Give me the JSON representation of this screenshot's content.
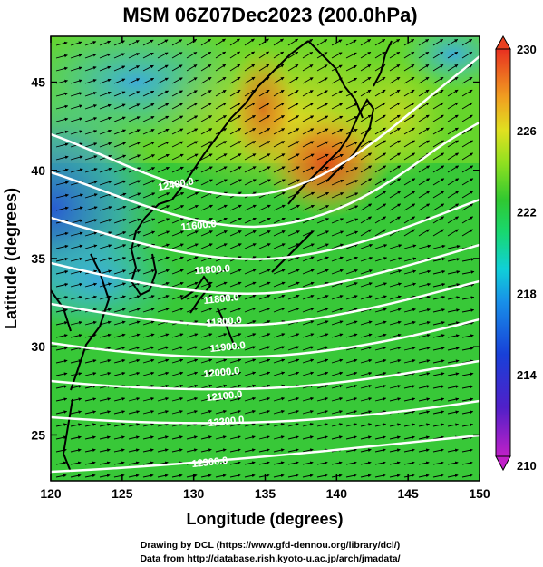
{
  "title": "MSM 06Z07Dec2023 (200.0hPa)",
  "axes": {
    "xlabel": "Longitude (degrees)",
    "ylabel": "Latitude  (degrees)",
    "xticks": [
      "120",
      "125",
      "130",
      "135",
      "140",
      "145",
      "150"
    ],
    "yticks": [
      "25",
      "30",
      "35",
      "40",
      "45"
    ],
    "xlim": [
      120,
      150
    ],
    "ylim": [
      22.4,
      47.6
    ]
  },
  "colorbar": {
    "labels": [
      "230",
      "226",
      "222",
      "218",
      "214",
      "210"
    ],
    "range": [
      210,
      230
    ],
    "colors": [
      "#b000c8",
      "#3020d0",
      "#1a6ee0",
      "#10c8e0",
      "#20d890",
      "#30c830",
      "#a0e020",
      "#e8e020",
      "#f0a020",
      "#e84020"
    ]
  },
  "contours": {
    "labels": [
      "11600.0",
      "11800.0",
      "11800.0",
      "11800.0",
      "11900.0",
      "12000.0",
      "12100.0",
      "12200.0",
      "12300.0",
      "12400.0"
    ],
    "color": "#ffffff"
  },
  "footer": {
    "line1": "Drawing by DCL (https://www.gfd-dennou.org/library/dcl/)",
    "line2": "Data from http://database.rish.kyoto-u.ac.jp/arch/jmadata/"
  }
}
